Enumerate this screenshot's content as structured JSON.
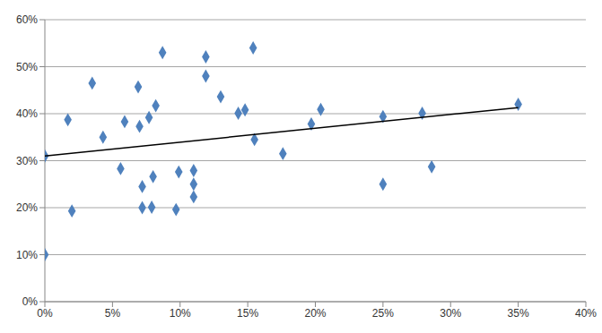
{
  "chart_data": {
    "type": "scatter",
    "xlim": [
      0,
      40
    ],
    "xticks": [
      {
        "value": 0,
        "label": "0%"
      },
      {
        "value": 5,
        "label": "5%"
      },
      {
        "value": 10,
        "label": "10%"
      },
      {
        "value": 15,
        "label": "15%"
      },
      {
        "value": 20,
        "label": "20%"
      },
      {
        "value": 25,
        "label": "25%"
      },
      {
        "value": 30,
        "label": "30%"
      },
      {
        "value": 35,
        "label": "35%"
      },
      {
        "value": 40,
        "label": "40%"
      }
    ],
    "ylim": [
      0,
      60
    ],
    "yticks": [
      {
        "value": 0,
        "label": "0%"
      },
      {
        "value": 10,
        "label": "10%"
      },
      {
        "value": 20,
        "label": "20%"
      },
      {
        "value": 30,
        "label": "30%"
      },
      {
        "value": 40,
        "label": "40%"
      },
      {
        "value": 50,
        "label": "50%"
      },
      {
        "value": 60,
        "label": "60%"
      }
    ],
    "grid": true,
    "series": [
      {
        "type": "scatter",
        "color": "#4f81bd",
        "marker": "diamond",
        "x": [
          0,
          0,
          1.7,
          2,
          3.5,
          4.3,
          5.6,
          5.9,
          6.9,
          7,
          7.2,
          7.2,
          7.7,
          7.9,
          8,
          8.2,
          8.7,
          9.7,
          9.9,
          11,
          11,
          11,
          11.9,
          11.9,
          13,
          14.3,
          14.8,
          15.4,
          15.5,
          17.6,
          19.7,
          20.4,
          25,
          25,
          27.9,
          28.6,
          35
        ],
        "values": [
          31,
          10,
          38.7,
          19.3,
          46.5,
          35,
          28.3,
          38.3,
          45.7,
          37.3,
          24.5,
          20,
          39.2,
          20.1,
          26.6,
          41.7,
          53,
          19.6,
          27.6,
          27.9,
          25,
          22.3,
          52.1,
          48,
          43.6,
          40.1,
          40.8,
          54,
          34.5,
          31.5,
          37.8,
          40.9,
          39.4,
          25,
          40.1,
          28.7,
          42
        ]
      },
      {
        "type": "line",
        "color": "#000000",
        "line_style": "solid",
        "x": [
          0,
          35
        ],
        "values": [
          31,
          41.3
        ]
      }
    ]
  }
}
